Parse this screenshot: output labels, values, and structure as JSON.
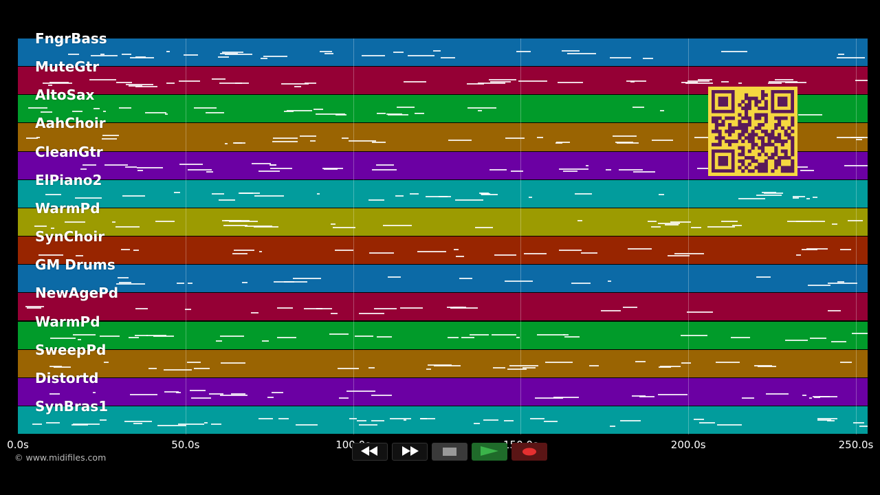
{
  "tracks": [
    {
      "name": "FngrBass",
      "color": "#0c6aa6"
    },
    {
      "name": "MuteGtr",
      "color": "#950035"
    },
    {
      "name": "AltoSax",
      "color": "#019b2a"
    },
    {
      "name": "AahChoir",
      "color": "#9a6402"
    },
    {
      "name": "CleanGtr",
      "color": "#6b00a3"
    },
    {
      "name": "ElPiano2",
      "color": "#029c9c"
    },
    {
      "name": "WarmPd",
      "color": "#9c9b01"
    },
    {
      "name": "SynChoir",
      "color": "#982500"
    },
    {
      "name": "GM Drums",
      "color": "#0c6aa6"
    },
    {
      "name": "NewAgePd",
      "color": "#950035"
    },
    {
      "name": "WarmPd",
      "color": "#019b2a"
    },
    {
      "name": "SweepPd",
      "color": "#9a6402"
    },
    {
      "name": "Distortd",
      "color": "#6b00a3"
    },
    {
      "name": "SynBras1",
      "color": "#029c9c"
    }
  ],
  "timeline": {
    "ticks": [
      "0.0s",
      "50.0s",
      "100.0s",
      "150.0s",
      "200.0s",
      "250.0s"
    ],
    "tick_seconds": [
      0,
      50,
      100,
      150,
      200,
      250
    ]
  },
  "copyright": "© www.midifiles.com",
  "transport": {
    "rewind_icon": "rewind-icon",
    "fast_forward_icon": "fast-forward-icon",
    "stop_icon": "stop-icon",
    "play_icon": "play-icon",
    "record_icon": "record-icon",
    "colors": {
      "play": "#3bb34a",
      "record": "#e53030",
      "stop": "#999999"
    }
  },
  "qr_code": {
    "color": "#f5d740",
    "module_color": "#5a1a5a"
  }
}
